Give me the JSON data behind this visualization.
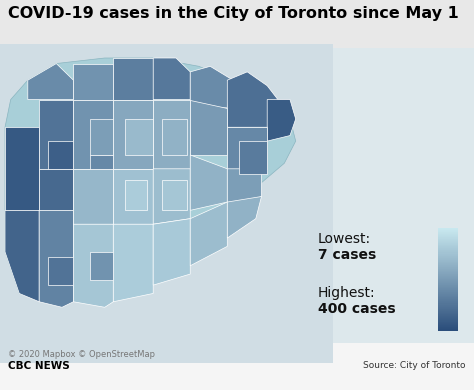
{
  "title": "COVID-19 cases in the City of Toronto since May 1",
  "title_fontsize": 11.5,
  "title_fontweight": "bold",
  "lowest_label_line1": "Lowest:",
  "lowest_label_line2": "7 cases",
  "highest_label_line1": "Highest:",
  "highest_label_line2": "400 cases",
  "colormap_low": "#c8e8ef",
  "colormap_high": "#2a4d7a",
  "fig_bg": "#f0f0f0",
  "map_area_bg": "#dce8ec",
  "footer_left": "© 2020 Mapbox © OpenStreetMap",
  "footer_source": "Source: City of Toronto",
  "footer_brand": "CBC NEWS",
  "title_bg": "#e8e8e8"
}
